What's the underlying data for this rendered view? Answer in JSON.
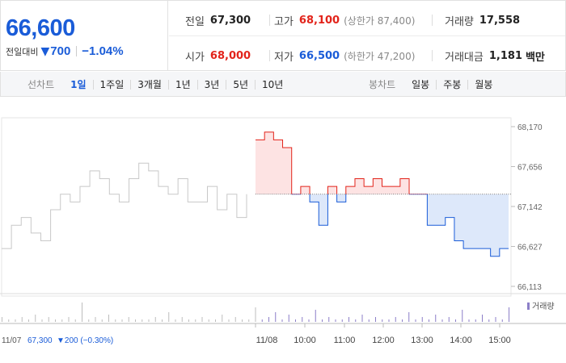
{
  "quote": {
    "price": "66,600",
    "change_label": "전일대비",
    "change_symbol": "▼",
    "change_value": "700",
    "change_pct": "−1.04%"
  },
  "stats": {
    "prev_close": {
      "label": "전일",
      "value": "67,300"
    },
    "high": {
      "label": "고가",
      "value": "68,100",
      "sub": "(상한가 87,400)"
    },
    "volume": {
      "label": "거래량",
      "value": "17,558"
    },
    "open": {
      "label": "시가",
      "value": "68,000"
    },
    "low": {
      "label": "저가",
      "value": "66,500",
      "sub": "(하한가 47,200)"
    },
    "amount": {
      "label": "거래대금",
      "value": "1,181",
      "unit": "백만"
    }
  },
  "tabs": {
    "line_title": "선차트",
    "line_items": [
      "1일",
      "1주일",
      "3개월",
      "1년",
      "3년",
      "5년",
      "10년"
    ],
    "line_active": 0,
    "candle_title": "봉차트",
    "candle_items": [
      "일봉",
      "주봉",
      "월봉"
    ]
  },
  "colors": {
    "up": "#e2231a",
    "down": "#1a5cd8",
    "prev_day": "#c8c8c8",
    "up_fill": "#fde3e3",
    "down_fill": "#dde8fa"
  },
  "chart_data": {
    "type": "line",
    "y_ticks": [
      "68,170",
      "67,656",
      "67,142",
      "66,627",
      "66,113"
    ],
    "y_tick_values": [
      68170,
      67656,
      67142,
      66627,
      66113
    ],
    "ylim": [
      66113,
      68170
    ],
    "reference_price": 67300,
    "x_ticks": [
      "11/08",
      "10:00",
      "11:00",
      "12:00",
      "13:00",
      "14:00",
      "15:00"
    ],
    "prev_day_label": "11/07",
    "prev_day_close": "67,300",
    "prev_day_change": "▼200 (−0.30%)",
    "volume_legend": "거래량",
    "series": [
      {
        "period": "previous day",
        "values": [
          66600,
          66900,
          67000,
          66800,
          66700,
          67100,
          67300,
          67200,
          67400,
          67600,
          67500,
          67300,
          67200,
          67500,
          67700,
          67600,
          67400,
          67300,
          67500,
          67200,
          67200,
          67400,
          67100,
          67300,
          67000,
          67300
        ]
      },
      {
        "period": "today",
        "times": [
          "09:00",
          "09:10",
          "09:20",
          "09:30",
          "09:35",
          "09:45",
          "10:00",
          "10:15",
          "10:30",
          "10:45",
          "11:00",
          "11:15",
          "11:30",
          "11:45",
          "12:00",
          "12:15",
          "12:30",
          "12:45",
          "13:00",
          "13:15",
          "13:30",
          "13:45",
          "14:00",
          "14:15",
          "14:30",
          "14:45",
          "15:00",
          "15:10",
          "15:20"
        ],
        "values": [
          68000,
          68100,
          68000,
          67900,
          67300,
          67400,
          67200,
          66900,
          67400,
          67200,
          67400,
          67500,
          67400,
          67500,
          67400,
          67400,
          67500,
          67300,
          67300,
          66900,
          66900,
          67000,
          66700,
          66600,
          66600,
          66600,
          66500,
          66600,
          66600
        ]
      }
    ],
    "volume_relative": [
      2,
      1,
      1,
      2,
      1,
      3,
      1,
      2,
      1,
      1,
      2,
      1,
      8,
      1,
      2,
      1,
      3,
      1,
      1,
      2,
      1,
      1,
      1,
      2,
      1,
      4,
      1,
      2,
      1,
      1,
      2,
      1,
      1,
      3,
      1,
      2,
      1,
      1,
      6,
      1,
      2,
      4,
      1,
      3,
      1,
      2,
      1,
      5,
      1,
      2,
      1,
      1,
      2,
      1,
      3,
      1,
      2,
      1,
      1,
      2,
      1,
      4,
      1,
      2,
      1,
      3,
      1,
      2,
      1,
      5,
      1,
      1,
      3,
      1,
      2,
      1,
      6
    ]
  }
}
